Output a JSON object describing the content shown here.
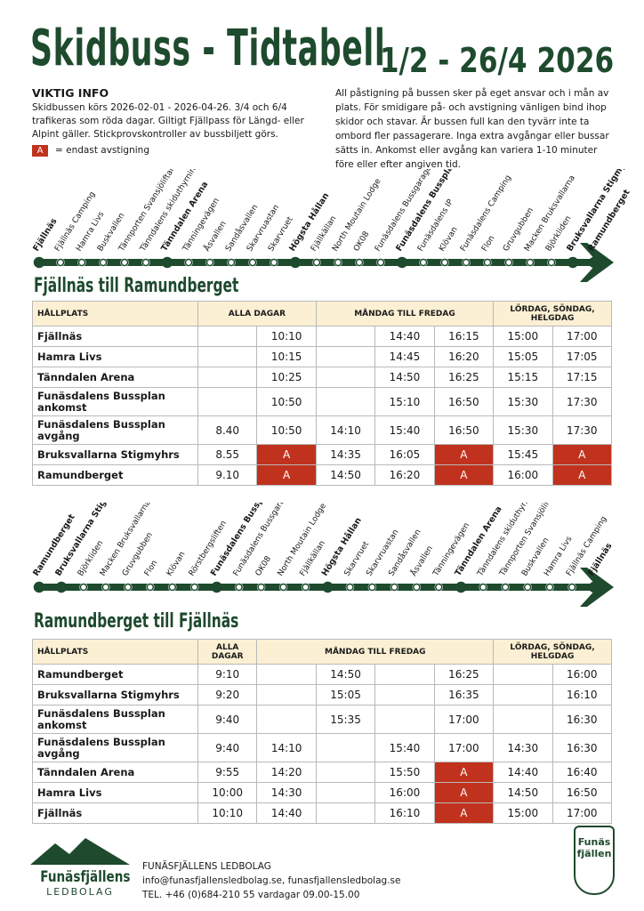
{
  "header": {
    "title": "Skidbuss - Tidtabell",
    "dates": "1/2 - 26/4 2026"
  },
  "info": {
    "heading": "VIKTIG INFO",
    "text": "Skidbussen körs 2026-02-01 - 2026-04-26. 3/4 och 6/4 trafikeras som röda dagar. Giltigt Fjällpass för Längd- eller Alpint gäller. Stickprovskontroller av bussbiljett görs.",
    "legend_badge": "A",
    "legend_text": "= endast avstigning",
    "right_text": "All påstigning på bussen sker på eget ansvar och i mån av plats. För smidigare på- och avstigning vänligen bind ihop skidor och stavar. Är bussen full kan den tyvärr inte ta ombord fler passagerare. Inga extra avgångar eller bussar sätts in. Ankomst eller avgång kan variera 1-10 minuter före eller efter angiven tid."
  },
  "routes": [
    {
      "stops": [
        {
          "name": "Fjällnäs",
          "major": true
        },
        {
          "name": "Fjällnäs Camping",
          "major": false
        },
        {
          "name": "Hamra Livs",
          "major": false
        },
        {
          "name": "Buskvallen",
          "major": false
        },
        {
          "name": "Tännporten Svansjöliftarna",
          "major": false
        },
        {
          "name": "Tänndalens skiduthyrning",
          "major": false
        },
        {
          "name": "Tänndalen Arena",
          "major": true
        },
        {
          "name": "Tänningevägen",
          "major": false
        },
        {
          "name": "Åsvallen",
          "major": false
        },
        {
          "name": "Sandåsvallen",
          "major": false
        },
        {
          "name": "Skarvruastan",
          "major": false
        },
        {
          "name": "Skarvruet",
          "major": false
        },
        {
          "name": "Högsta Hållan",
          "major": true
        },
        {
          "name": "Fjällkällan",
          "major": false
        },
        {
          "name": "North Moutain Lodge",
          "major": false
        },
        {
          "name": "OK08",
          "major": false
        },
        {
          "name": "Funäsdalens Bussgarage",
          "major": false
        },
        {
          "name": "Funäsdalens Bussplan - Gondolen",
          "major": true
        },
        {
          "name": "Funäsdalens IP",
          "major": false
        },
        {
          "name": "Klövan",
          "major": false
        },
        {
          "name": "Funäsdalens Camping",
          "major": false
        },
        {
          "name": "Flon",
          "major": false
        },
        {
          "name": "Gruvgubben",
          "major": false
        },
        {
          "name": "Macken Bruksvallarna",
          "major": false
        },
        {
          "name": "Björkliden",
          "major": false
        },
        {
          "name": "Bruksvallarna Stigmyhrs",
          "major": true
        },
        {
          "name": "Ramundberget",
          "major": true
        }
      ]
    },
    {
      "stops": [
        {
          "name": "Ramundberget",
          "major": true
        },
        {
          "name": "Bruksvallarna Stigmyhrs",
          "major": true
        },
        {
          "name": "Björkliden",
          "major": false
        },
        {
          "name": "Macken Bruksvallarna",
          "major": false
        },
        {
          "name": "Gruvgubben",
          "major": false
        },
        {
          "name": "Flon",
          "major": false
        },
        {
          "name": "Klövan",
          "major": false
        },
        {
          "name": "Rörstbergsliften",
          "major": false
        },
        {
          "name": "Funäsdalens Bussplan - Gondolen",
          "major": true
        },
        {
          "name": "Funäsdalens Bussgarage",
          "major": false
        },
        {
          "name": "OK08",
          "major": false
        },
        {
          "name": "North Moutain Lodge",
          "major": false
        },
        {
          "name": "Fjällkällan",
          "major": false
        },
        {
          "name": "Högsta Hållan",
          "major": true
        },
        {
          "name": "Skarvruet",
          "major": false
        },
        {
          "name": "Skarvruastan",
          "major": false
        },
        {
          "name": "Sandåsvallen",
          "major": false
        },
        {
          "name": "Åsvallen",
          "major": false
        },
        {
          "name": "Tänningevägen",
          "major": false
        },
        {
          "name": "Tänndalen Arena",
          "major": true
        },
        {
          "name": "Tänndalens skiduthyrning",
          "major": false
        },
        {
          "name": "Tännporten Svansjöliftarna",
          "major": false
        },
        {
          "name": "Buskvallen",
          "major": false
        },
        {
          "name": "Hamra Livs",
          "major": false
        },
        {
          "name": "Fjällnäs Camping",
          "major": false
        },
        {
          "name": "Fjällnäs",
          "major": true
        }
      ]
    }
  ],
  "tables": [
    {
      "title": "Fjällnäs till Ramundberget",
      "stop_header": "HÅLLPLATS",
      "groups": [
        {
          "label": "ALLA DAGAR",
          "span": 2
        },
        {
          "label": "MÅNDAG TILL FREDAG",
          "span": 3
        },
        {
          "label": "LÖRDAG, SÖNDAG, HELGDAG",
          "span": 2
        }
      ],
      "rows": [
        {
          "stop": "Fjällnäs",
          "times": [
            null,
            "10:10",
            null,
            "14:40",
            "16:15",
            "15:00",
            "17:00"
          ]
        },
        {
          "stop": "Hamra Livs",
          "times": [
            null,
            "10:15",
            null,
            "14:45",
            "16:20",
            "15:05",
            "17:05"
          ]
        },
        {
          "stop": "Tänndalen Arena",
          "times": [
            null,
            "10:25",
            null,
            "14:50",
            "16:25",
            "15:15",
            "17:15"
          ]
        },
        {
          "stop": "Funäsdalens Bussplan ankomst",
          "times": [
            null,
            "10:50",
            null,
            "15:10",
            "16:50",
            "15:30",
            "17:30"
          ]
        },
        {
          "stop": "Funäsdalens Bussplan avgång",
          "times": [
            "8.40",
            "10:50",
            "14:10",
            "15:40",
            "16:50",
            "15:30",
            "17:30"
          ]
        },
        {
          "stop": "Bruksvallarna Stigmyhrs",
          "times": [
            "8.55",
            "A",
            "14:35",
            "16:05",
            "A",
            "15:45",
            "A"
          ]
        },
        {
          "stop": "Ramundberget",
          "times": [
            "9.10",
            "A",
            "14:50",
            "16:20",
            "A",
            "16:00",
            "A"
          ]
        }
      ]
    },
    {
      "title": "Ramundberget till Fjällnäs",
      "stop_header": "HÅLLPLATS",
      "groups": [
        {
          "label": "ALLA DAGAR",
          "span": 1
        },
        {
          "label": "MÅNDAG TILL FREDAG",
          "span": 4
        },
        {
          "label": "LÖRDAG, SÖNDAG, HELGDAG",
          "span": 2
        }
      ],
      "rows": [
        {
          "stop": "Ramundberget",
          "times": [
            "9:10",
            null,
            "14:50",
            null,
            "16:25",
            null,
            "16:00"
          ]
        },
        {
          "stop": "Bruksvallarna Stigmyhrs",
          "times": [
            "9:20",
            null,
            "15:05",
            null,
            "16:35",
            null,
            "16:10"
          ]
        },
        {
          "stop": "Funäsdalens Bussplan ankomst",
          "times": [
            "9:40",
            null,
            "15:35",
            null,
            "17:00",
            null,
            "16:30"
          ]
        },
        {
          "stop": "Funäsdalens Bussplan avgång",
          "times": [
            "9:40",
            "14:10",
            null,
            "15:40",
            "17:00",
            "14:30",
            "16:30"
          ]
        },
        {
          "stop": "Tänndalen Arena",
          "times": [
            "9:55",
            "14:20",
            null,
            "15:50",
            "A",
            "14:40",
            "16:40"
          ]
        },
        {
          "stop": "Hamra Livs",
          "times": [
            "10:00",
            "14:30",
            null,
            "16:00",
            "A",
            "14:50",
            "16:50"
          ]
        },
        {
          "stop": "Fjällnäs",
          "times": [
            "10:10",
            "14:40",
            null,
            "16:10",
            "A",
            "15:00",
            "17:00"
          ]
        }
      ]
    }
  ],
  "footer": {
    "logo_name": "Funäsfjällens",
    "logo_sub": "LEDBOLAG",
    "company": "FUNÄSFJÄLLENS LEDBOLAG",
    "contact": "info@funasfjallensledbolag.se, funasfjallensledbolag.se",
    "phone": "TEL. +46 (0)684-210 55 vardagar 09.00-15.00",
    "badge_top": "Funäs",
    "badge_bottom": "fjällen"
  }
}
